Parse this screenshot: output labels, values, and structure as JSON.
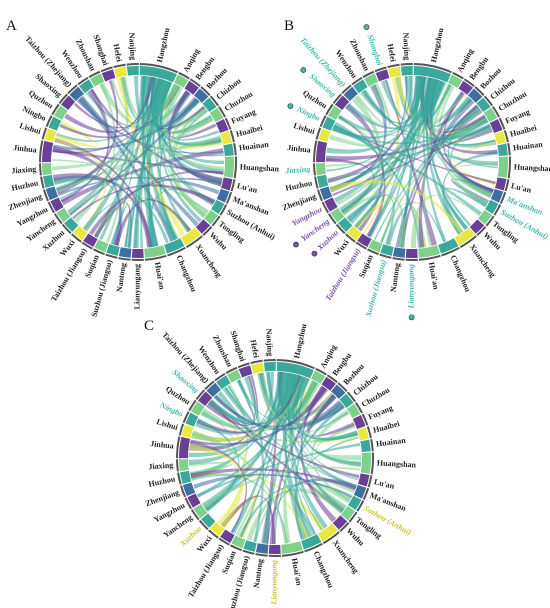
{
  "panels": [
    {
      "letter": "A",
      "highlights": []
    },
    {
      "letter": "B",
      "highlights": [
        {
          "city": "Taizhou (Zhejiang)",
          "color": "#44b8a8",
          "dot": false
        },
        {
          "city": "Shaoxing",
          "color": "#44b8a8",
          "dot": true
        },
        {
          "city": "Shanghai",
          "color": "#44b8a8",
          "dot": true
        },
        {
          "city": "Ningbo",
          "color": "#44b8a8",
          "dot": true
        },
        {
          "city": "Jiaxing",
          "color": "#44b8a8",
          "dot": false
        },
        {
          "city": "Yangzhou",
          "color": "#7b52a8",
          "dot": false
        },
        {
          "city": "Yancheng",
          "color": "#7b52a8",
          "dot": true
        },
        {
          "city": "Xuzhou",
          "color": "#7b52a8",
          "dot": true
        },
        {
          "city": "Taizhou (Jiangsu)",
          "color": "#7b52a8",
          "dot": false
        },
        {
          "city": "Suzhou (Jiangsu)",
          "color": "#44b8a8",
          "dot": false
        },
        {
          "city": "Lianyungang",
          "color": "#44b8a8",
          "dot": true
        },
        {
          "city": "Ma'anshan",
          "color": "#44b8a8",
          "dot": false
        },
        {
          "city": "Suzhou (Anhui)",
          "color": "#44b8a8",
          "dot": true
        }
      ]
    },
    {
      "letter": "C",
      "highlights": [
        {
          "city": "Shaoxing",
          "color": "#44b8a8",
          "dot": false
        },
        {
          "city": "Ningbo",
          "color": "#44b8a8",
          "dot": false
        },
        {
          "city": "Xuzhou",
          "color": "#c8c832",
          "dot": false
        },
        {
          "city": "Lianyungang",
          "color": "#c8c832",
          "dot": false
        },
        {
          "city": "Suzhou (Anhui)",
          "color": "#c8c832",
          "dot": false
        }
      ]
    }
  ],
  "cities": [
    "Hangzhou",
    "Anqing",
    "Bengbu",
    "Bozhou",
    "Chizhou",
    "Chuzhou",
    "Fuyang",
    "Huaibei",
    "Huainan",
    "Huangshan",
    "Lu'an",
    "Ma'anshan",
    "Suzhou (Anhui)",
    "Tongling",
    "Wuhu",
    "Xuancheng",
    "Changzhou",
    "Huai'an",
    "Lianyungang",
    "Nantong",
    "Suzhou (Jiangsu)",
    "Suqian",
    "Taizhou (Jiangsu)",
    "Wuxi",
    "Xuzhou",
    "Yancheng",
    "Yangzhou",
    "Zhenjiang",
    "Huzhou",
    "Jiaxing",
    "Jinhua",
    "Lishui",
    "Ningbo",
    "Quzhou",
    "Shaoxing",
    "Taizhou (Zhejiang)",
    "Wenzhou",
    "Zhoushan",
    "Shanghai",
    "Hefei",
    "Nanjing"
  ],
  "colors": {
    "teal": "#3aa89a",
    "green": "#7fd08a",
    "purple": "#6a3f96",
    "blue": "#3f6fa0",
    "yellow": "#e8e840",
    "label": "#222222"
  }
}
